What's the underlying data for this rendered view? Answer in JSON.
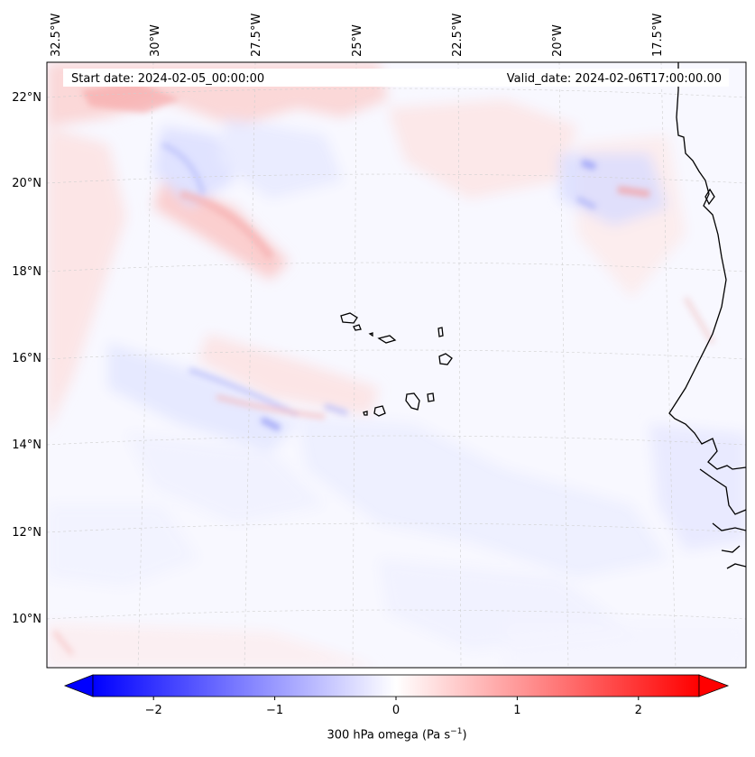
{
  "map": {
    "start_date": "Start date: 2024-02-05_00:00:00",
    "valid_date": "Valid_date: 2024-02-06T17:00:00.00",
    "lat_labels": [
      "22°N",
      "20°N",
      "18°N",
      "16°N",
      "14°N",
      "12°N",
      "10°N"
    ],
    "lon_labels": [
      "32.5°W",
      "30°W",
      "27.5°W",
      "25°W",
      "22.5°W",
      "20°W",
      "17.5°W"
    ],
    "colors": {
      "negative": "#0000ff",
      "positive": "#ff0000",
      "neutral": "#ffffff",
      "coast": "#000000",
      "grid": "#cccccc"
    }
  },
  "colorbar": {
    "ticks": [
      "−2",
      "−1",
      "0",
      "1",
      "2"
    ],
    "tick_values": [
      -2,
      -1,
      0,
      1,
      2
    ],
    "range": [
      -2.5,
      2.5
    ],
    "title_main": "300 hPa omega (Pa s",
    "title_sup": "−1",
    "title_close": ")"
  }
}
